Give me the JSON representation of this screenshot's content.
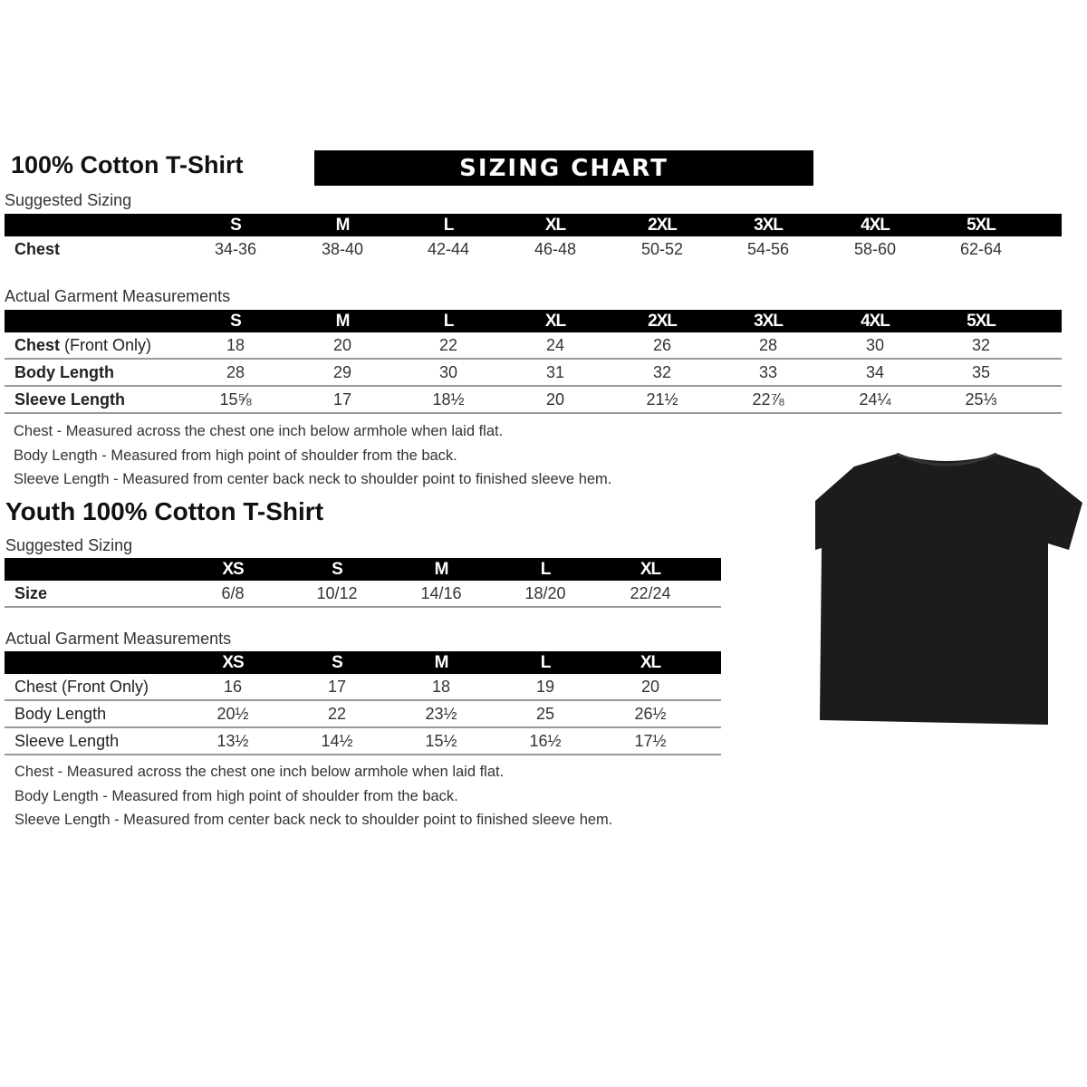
{
  "adult": {
    "title": "100% Cotton T-Shirt",
    "banner": "SIZING CHART",
    "suggested_label": "Suggested Sizing",
    "sizes": [
      "S",
      "M",
      "L",
      "XL",
      "2XL",
      "3XL",
      "4XL",
      "5XL"
    ],
    "suggested_rows": [
      {
        "label": "Chest",
        "values": [
          "34-36",
          "38-40",
          "42-44",
          "46-48",
          "50-52",
          "54-56",
          "58-60",
          "62-64"
        ]
      }
    ],
    "actual_label": "Actual Garment Measurements",
    "actual_rows": [
      {
        "label": "Chest",
        "label_extra": " (Front Only)",
        "values": [
          "18",
          "20",
          "22",
          "24",
          "26",
          "28",
          "30",
          "32"
        ]
      },
      {
        "label": "Body Length",
        "values": [
          "28",
          "29",
          "30",
          "31",
          "32",
          "33",
          "34",
          "35"
        ]
      },
      {
        "label": "Sleeve Length",
        "values": [
          "15⅝",
          "17",
          "18½",
          "20",
          "21½",
          "22⅞",
          "24¼",
          "25⅓"
        ]
      }
    ],
    "notes": [
      "Chest - Measured across the chest one inch below armhole when laid flat.",
      "Body Length - Measured from high point of shoulder from the back.",
      "Sleeve Length - Measured from center back neck to shoulder point to finished sleeve hem."
    ]
  },
  "youth": {
    "title": "Youth 100% Cotton T-Shirt",
    "suggested_label": "Suggested Sizing",
    "sizes": [
      "XS",
      "S",
      "M",
      "L",
      "XL"
    ],
    "suggested_rows": [
      {
        "label": "Size",
        "values": [
          "6/8",
          "10/12",
          "14/16",
          "18/20",
          "22/24"
        ]
      }
    ],
    "actual_label": "Actual Garment Measurements",
    "actual_rows": [
      {
        "label": "Chest (Front Only)",
        "values": [
          "16",
          "17",
          "18",
          "19",
          "20"
        ]
      },
      {
        "label": "Body Length",
        "values": [
          "20½",
          "22",
          "23½",
          "25",
          "26½"
        ]
      },
      {
        "label": "Sleeve Length",
        "values": [
          "13½",
          "14½",
          "15½",
          "16½",
          "17½"
        ]
      }
    ],
    "notes": [
      "Chest - Measured across the chest one inch below armhole when laid flat.",
      "Body Length - Measured from high point of shoulder from the back.",
      "Sleeve Length - Measured from center back neck to shoulder point to finished sleeve hem."
    ]
  },
  "colors": {
    "header_bg": "#000000",
    "header_text": "#ffffff",
    "shirt": "#1c1c1c"
  }
}
